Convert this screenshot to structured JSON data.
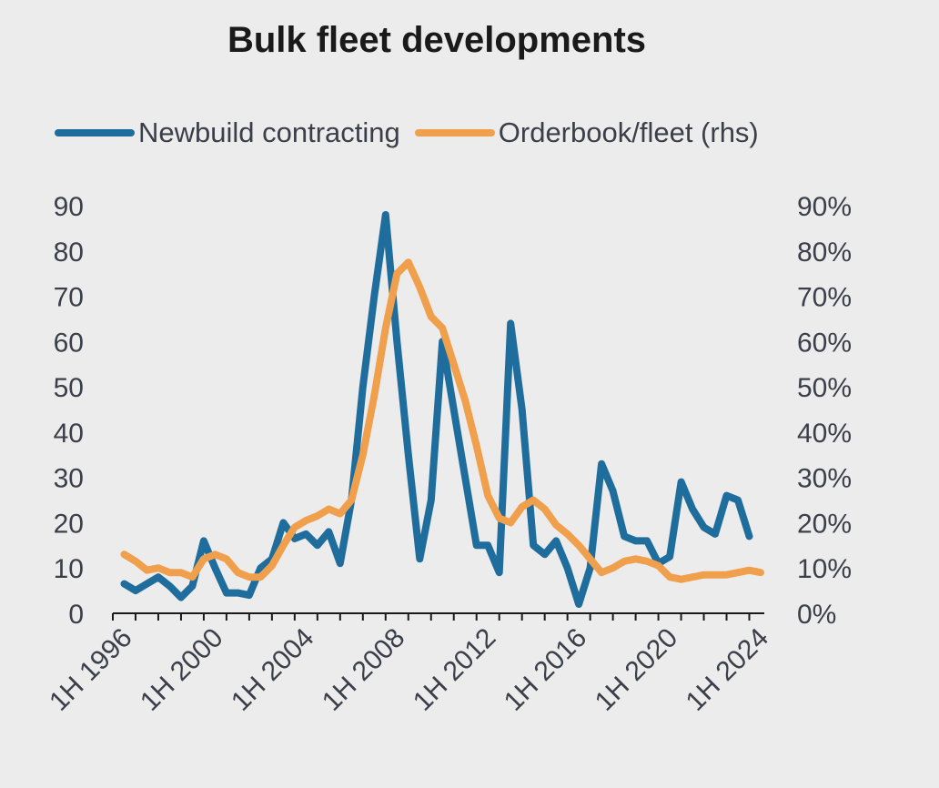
{
  "chart_data": {
    "type": "line",
    "title": "Bulk fleet developments",
    "series": [
      {
        "name": "Newbuild contracting",
        "axis": "left",
        "color": "#1f6d9c",
        "x": [
          1996.5,
          1997,
          1997.5,
          1998,
          1998.5,
          1999,
          1999.5,
          2000,
          2000.5,
          2001,
          2001.5,
          2002,
          2002.5,
          2003,
          2003.5,
          2004,
          2004.5,
          2005,
          2005.5,
          2006,
          2006.5,
          2007,
          2007.5,
          2008,
          2008.5,
          2009,
          2009.5,
          2010,
          2010.5,
          2011,
          2011.5,
          2012,
          2012.5,
          2013,
          2013.5,
          2014,
          2014.5,
          2015,
          2015.5,
          2016,
          2016.5,
          2017,
          2017.5,
          2018,
          2018.5,
          2019,
          2019.5,
          2020,
          2020.5,
          2021,
          2021.5,
          2022,
          2022.5,
          2023,
          2023.5,
          2024,
          2024.5
        ],
        "values": [
          6.5,
          5,
          6.5,
          8,
          6,
          3.5,
          6,
          16,
          10,
          4.5,
          4.5,
          4,
          10,
          12,
          20,
          16.5,
          17.5,
          15,
          18,
          11,
          25,
          50,
          70,
          88,
          60,
          35,
          12,
          25,
          60,
          45,
          30,
          15,
          15,
          9,
          64,
          45,
          15,
          13,
          16,
          10,
          2,
          10,
          33,
          27,
          17,
          16,
          16,
          11,
          12.5,
          29,
          23,
          19,
          17.5,
          26,
          25,
          17,
          null
        ]
      },
      {
        "name": "Orderbook/fleet (rhs)",
        "axis": "right",
        "color": "#f0a04c",
        "x": [
          1996.5,
          1997,
          1997.5,
          1998,
          1998.5,
          1999,
          1999.5,
          2000,
          2000.5,
          2001,
          2001.5,
          2002,
          2002.5,
          2003,
          2003.5,
          2004,
          2004.5,
          2005,
          2005.5,
          2006,
          2006.5,
          2007,
          2007.5,
          2008,
          2008.5,
          2009,
          2009.5,
          2010,
          2010.5,
          2011,
          2011.5,
          2012,
          2012.5,
          2013,
          2013.5,
          2014,
          2014.5,
          2015,
          2015.5,
          2016,
          2016.5,
          2017,
          2017.5,
          2018,
          2018.5,
          2019,
          2019.5,
          2020,
          2020.5,
          2021,
          2021.5,
          2022,
          2022.5,
          2023,
          2023.5,
          2024,
          2024.5
        ],
        "values": [
          13,
          11.5,
          9.5,
          10,
          9,
          9,
          8,
          12,
          13,
          12,
          9,
          8,
          8,
          10.5,
          15,
          19,
          20.5,
          21.5,
          23,
          22,
          25,
          35,
          48,
          63,
          75,
          77.5,
          72,
          65.5,
          63,
          55,
          47,
          37,
          26,
          21,
          20,
          23.5,
          25,
          23,
          19.5,
          17.5,
          15,
          12,
          9,
          10,
          11.5,
          12,
          11.5,
          10.5,
          8,
          7.5,
          8,
          8.5,
          8.5,
          8.5,
          9,
          9.5,
          9
        ]
      }
    ],
    "xlabel": "",
    "ylabel": "",
    "ylim": [
      0,
      90
    ],
    "y2lim": [
      0,
      90
    ],
    "xlim": [
      1996,
      2024.5
    ],
    "xtick_values": [
      1996,
      2000,
      2004,
      2008,
      2012,
      2016,
      2020,
      2024
    ],
    "xtick_labels": [
      "1H 1996",
      "1H 2000",
      "1H 2004",
      "1H 2008",
      "1H 2012",
      "1H 2016",
      "1H 2020",
      "1H 2024"
    ],
    "ytick_labels": [
      "0",
      "10",
      "20",
      "30",
      "40",
      "50",
      "60",
      "70",
      "80",
      "90"
    ],
    "y2tick_labels": [
      "0%",
      "10%",
      "20%",
      "30%",
      "40%",
      "50%",
      "60%",
      "70%",
      "80%",
      "90%"
    ],
    "legend_position": "top",
    "grid": false
  }
}
